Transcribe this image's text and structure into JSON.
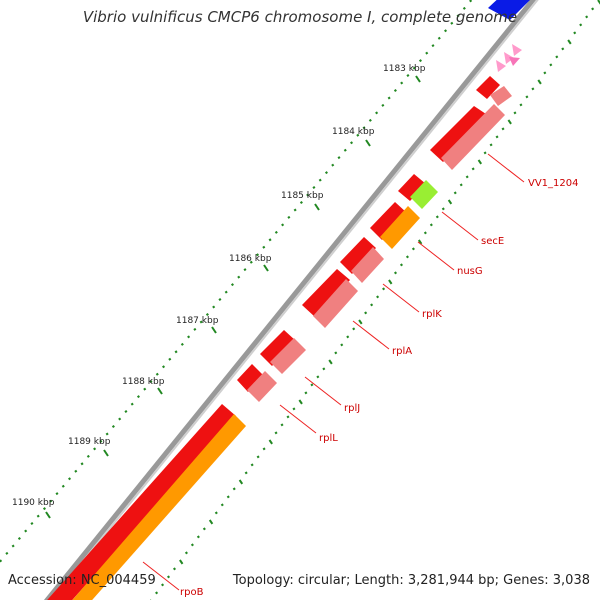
{
  "title": "Vibrio vulnificus CMCP6 chromosome I, complete genome",
  "footer": {
    "accession": "Accession: NC_004459",
    "topology": "Topology: circular; Length: 3,281,944 bp; Genes: 3,038"
  },
  "ruler": [
    "1183 kbp",
    "1184 kbp",
    "1185 kbp",
    "1186 kbp",
    "1187 kbp",
    "1188 kbp",
    "1189 kbp",
    "1190 kbp"
  ],
  "gene_labels": [
    "VV1_1204",
    "secE",
    "nusG",
    "rplK",
    "rplA",
    "rplJ",
    "rplL",
    "rpoB"
  ],
  "colors": {
    "backbone": "#888888",
    "gene": "#ee0000",
    "cds": "#f08080",
    "cds_orange": "#ff9900",
    "cds_green": "#99ee33",
    "trna": "#ff99cc",
    "other": "#0000ee",
    "tick": "#228822",
    "leader": "#ee2222"
  }
}
